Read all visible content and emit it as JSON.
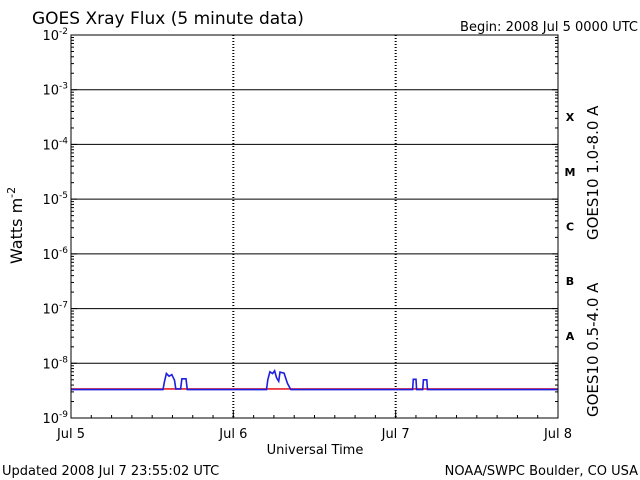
{
  "chart_data": {
    "type": "line",
    "title": "GOES Xray Flux (5 minute data)",
    "begin_label": "Begin:  2008 Jul 5 0000 UTC",
    "ylabel_base": "Watts m",
    "ylabel_exp": "-2",
    "xlabel": "Universal Time",
    "yscale": "log",
    "ylim": [
      1e-09,
      0.01
    ],
    "y_ticks": [
      {
        "base": "10",
        "exp": "-2",
        "value": 0.01
      },
      {
        "base": "10",
        "exp": "-3",
        "value": 0.001
      },
      {
        "base": "10",
        "exp": "-4",
        "value": 0.0001
      },
      {
        "base": "10",
        "exp": "-5",
        "value": 1e-05
      },
      {
        "base": "10",
        "exp": "-6",
        "value": 1e-06
      },
      {
        "base": "10",
        "exp": "-7",
        "value": 1e-07
      },
      {
        "base": "10",
        "exp": "-8",
        "value": 1e-08
      },
      {
        "base": "10",
        "exp": "-9",
        "value": 1e-09
      }
    ],
    "xlim": [
      0,
      72
    ],
    "x_unit": "hours since 2008 Jul 5 0000 UTC",
    "x_ticks": [
      {
        "label": "Jul 5",
        "value": 0
      },
      {
        "label": "Jul 6",
        "value": 24
      },
      {
        "label": "Jul 7",
        "value": 48
      },
      {
        "label": "Jul 8",
        "value": 72
      }
    ],
    "flare_classes": [
      {
        "label": "X",
        "value": 0.0001
      },
      {
        "label": "M",
        "value": 1e-05
      },
      {
        "label": "C",
        "value": 1e-06
      },
      {
        "label": "B",
        "value": 1e-07
      },
      {
        "label": "A",
        "value": 1e-08
      }
    ],
    "series": [
      {
        "name": "GOES10 1.0-8.0 A",
        "color": "#e8202a",
        "points": [
          [
            0,
            3.4e-09
          ],
          [
            72,
            3.4e-09
          ]
        ]
      },
      {
        "name": "GOES10 0.5-4.0 A",
        "color": "#1c1ee0",
        "points": [
          [
            0,
            3.3e-09
          ],
          [
            13.6,
            3.3e-09
          ],
          [
            13.8,
            4.5e-09
          ],
          [
            14.1,
            6.5e-09
          ],
          [
            14.5,
            5.8e-09
          ],
          [
            14.9,
            6.2e-09
          ],
          [
            15.3,
            4.9e-09
          ],
          [
            15.5,
            3.4e-09
          ],
          [
            16.2,
            3.4e-09
          ],
          [
            16.4,
            5.2e-09
          ],
          [
            17.0,
            5.2e-09
          ],
          [
            17.2,
            3.3e-09
          ],
          [
            23.6,
            3.3e-09
          ],
          [
            24.6,
            3.3e-09
          ],
          [
            28.9,
            3.3e-09
          ],
          [
            29.1,
            5e-09
          ],
          [
            29.4,
            7e-09
          ],
          [
            29.8,
            6.5e-09
          ],
          [
            30.1,
            7.3e-09
          ],
          [
            30.4,
            5.4e-09
          ],
          [
            30.7,
            4.7e-09
          ],
          [
            30.9,
            6.9e-09
          ],
          [
            31.5,
            6.6e-09
          ],
          [
            32.0,
            4.3e-09
          ],
          [
            32.5,
            3.3e-09
          ],
          [
            47.5,
            3.3e-09
          ],
          [
            48.3,
            3.3e-09
          ],
          [
            50.5,
            3.3e-09
          ],
          [
            50.6,
            5.1e-09
          ],
          [
            51.0,
            5.1e-09
          ],
          [
            51.1,
            3.3e-09
          ],
          [
            52.0,
            3.3e-09
          ],
          [
            52.1,
            5e-09
          ],
          [
            52.6,
            5e-09
          ],
          [
            52.7,
            3.3e-09
          ],
          [
            72,
            3.3e-09
          ]
        ]
      }
    ],
    "grid": "horizontal at each decade; dotted verticals at day boundaries",
    "legend_placement": "right, rotated vertical"
  },
  "footer": {
    "updated": "Updated 2008 Jul  7 23:55:02 UTC",
    "source": "NOAA/SWPC Boulder, CO USA"
  }
}
